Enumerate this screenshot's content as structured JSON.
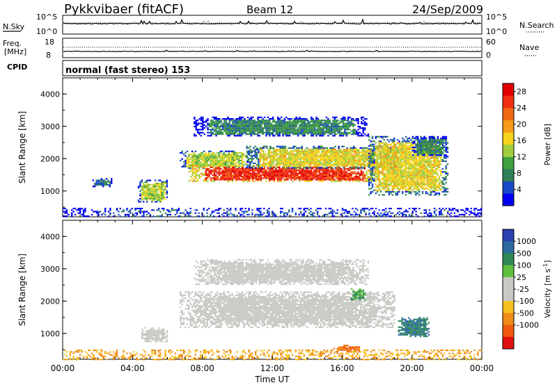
{
  "header": {
    "title": "Pykkvibaer (fitACF)",
    "beam": "Beam 12",
    "date": "24/Sep/2009"
  },
  "small_panels": {
    "nsky_label": "N.Sky",
    "nsky_ticks": [
      "10^5",
      "10^0"
    ],
    "nsearch_label": "N.Search",
    "nsearch_ticks": [
      "10^5",
      "10^0"
    ],
    "freq_label": "Freq.",
    "freq_unit": "[MHz]",
    "freq_ticks": [
      "18",
      "8"
    ],
    "nave_label": "Nave",
    "nave_ticks": [
      "60",
      "0"
    ],
    "cpid_label": "CPID",
    "cpid_text": "normal (fast stereo) 153"
  },
  "colors": {
    "power_scale": [
      "#0000ee",
      "#1a49c8",
      "#2f7f57",
      "#3fa03f",
      "#9fcf3f",
      "#f5d31a",
      "#f59a1a",
      "#f06a10",
      "#f03010",
      "#e00000"
    ],
    "velocity_scale": [
      "#2a40b0",
      "#2d6aa0",
      "#2f8a57",
      "#5fc040",
      "#c8c8c4",
      "#c8c8c4",
      "#f5c020",
      "#f08a18",
      "#f05a10",
      "#e01010"
    ],
    "ground_scatter": "#c8c8c4"
  },
  "chart_data": [
    {
      "type": "heatmap",
      "name": "power",
      "xlabel": "",
      "ylabel": "Slant Range [km]",
      "x_ticks": [
        "00:00",
        "04:00",
        "08:00",
        "12:00",
        "16:00",
        "20:00",
        "00:00"
      ],
      "y_ticks": [
        "1000",
        "2000",
        "3000",
        "4000"
      ],
      "xlim": [
        0,
        24
      ],
      "ylim": [
        200,
        4500
      ],
      "colorbar_label": "Power [dB]",
      "colorbar_ticks": [
        "4",
        "8",
        "12",
        "16",
        "20",
        "24",
        "28"
      ],
      "colorbar_range": [
        0,
        30
      ],
      "regions": [
        {
          "t": [
            1.7,
            2.8
          ],
          "r": [
            1150,
            1400
          ],
          "level": 6
        },
        {
          "t": [
            4.3,
            6.0
          ],
          "r": [
            650,
            1350
          ],
          "level": 14
        },
        {
          "t": [
            6.7,
            10.8
          ],
          "r": [
            1700,
            2250
          ],
          "level": 14
        },
        {
          "t": [
            7.2,
            18.2
          ],
          "r": [
            1300,
            1800
          ],
          "level": 26
        },
        {
          "t": [
            10.5,
            19.2
          ],
          "r": [
            1700,
            2400
          ],
          "level": 16
        },
        {
          "t": [
            7.5,
            17.5
          ],
          "r": [
            2700,
            3300
          ],
          "level": 8
        },
        {
          "t": [
            17.5,
            22.0
          ],
          "r": [
            900,
            2700
          ],
          "level": 16
        },
        {
          "t": [
            20.0,
            22.0
          ],
          "r": [
            2100,
            2700
          ],
          "level": 8
        },
        {
          "t": [
            0,
            24
          ],
          "r": [
            200,
            480
          ],
          "level": 4
        }
      ]
    },
    {
      "type": "heatmap",
      "name": "velocity",
      "xlabel": "Time UT",
      "ylabel": "Slant Range [km]",
      "x_ticks": [
        "00:00",
        "04:00",
        "08:00",
        "12:00",
        "16:00",
        "20:00",
        "00:00"
      ],
      "y_ticks": [
        "1000",
        "2000",
        "3000",
        "4000"
      ],
      "xlim": [
        0,
        24
      ],
      "ylim": [
        200,
        4500
      ],
      "colorbar_label": "Velocity [m s",
      "colorbar_unit_sup": "-1",
      "colorbar_ticks": [
        "1000",
        "500",
        "100",
        "25",
        "-25",
        "-100",
        "-500",
        "-1000"
      ],
      "regions": [
        {
          "t": [
            4.5,
            6.0
          ],
          "r": [
            750,
            1200
          ],
          "kind": "ground"
        },
        {
          "t": [
            6.7,
            19.0
          ],
          "r": [
            1200,
            2300
          ],
          "kind": "ground"
        },
        {
          "t": [
            7.5,
            17.5
          ],
          "r": [
            2500,
            3300
          ],
          "kind": "ground"
        },
        {
          "t": [
            16.5,
            17.3
          ],
          "r": [
            2050,
            2400
          ],
          "kind": "velocity",
          "v": 100
        },
        {
          "t": [
            19.2,
            21.0
          ],
          "r": [
            900,
            1500
          ],
          "kind": "velocity",
          "v": 500
        },
        {
          "t": [
            15.5,
            17.0
          ],
          "r": [
            450,
            650
          ],
          "kind": "velocity",
          "v": -500
        },
        {
          "t": [
            0,
            24
          ],
          "r": [
            200,
            500
          ],
          "kind": "velocity",
          "v": -100
        }
      ]
    }
  ]
}
